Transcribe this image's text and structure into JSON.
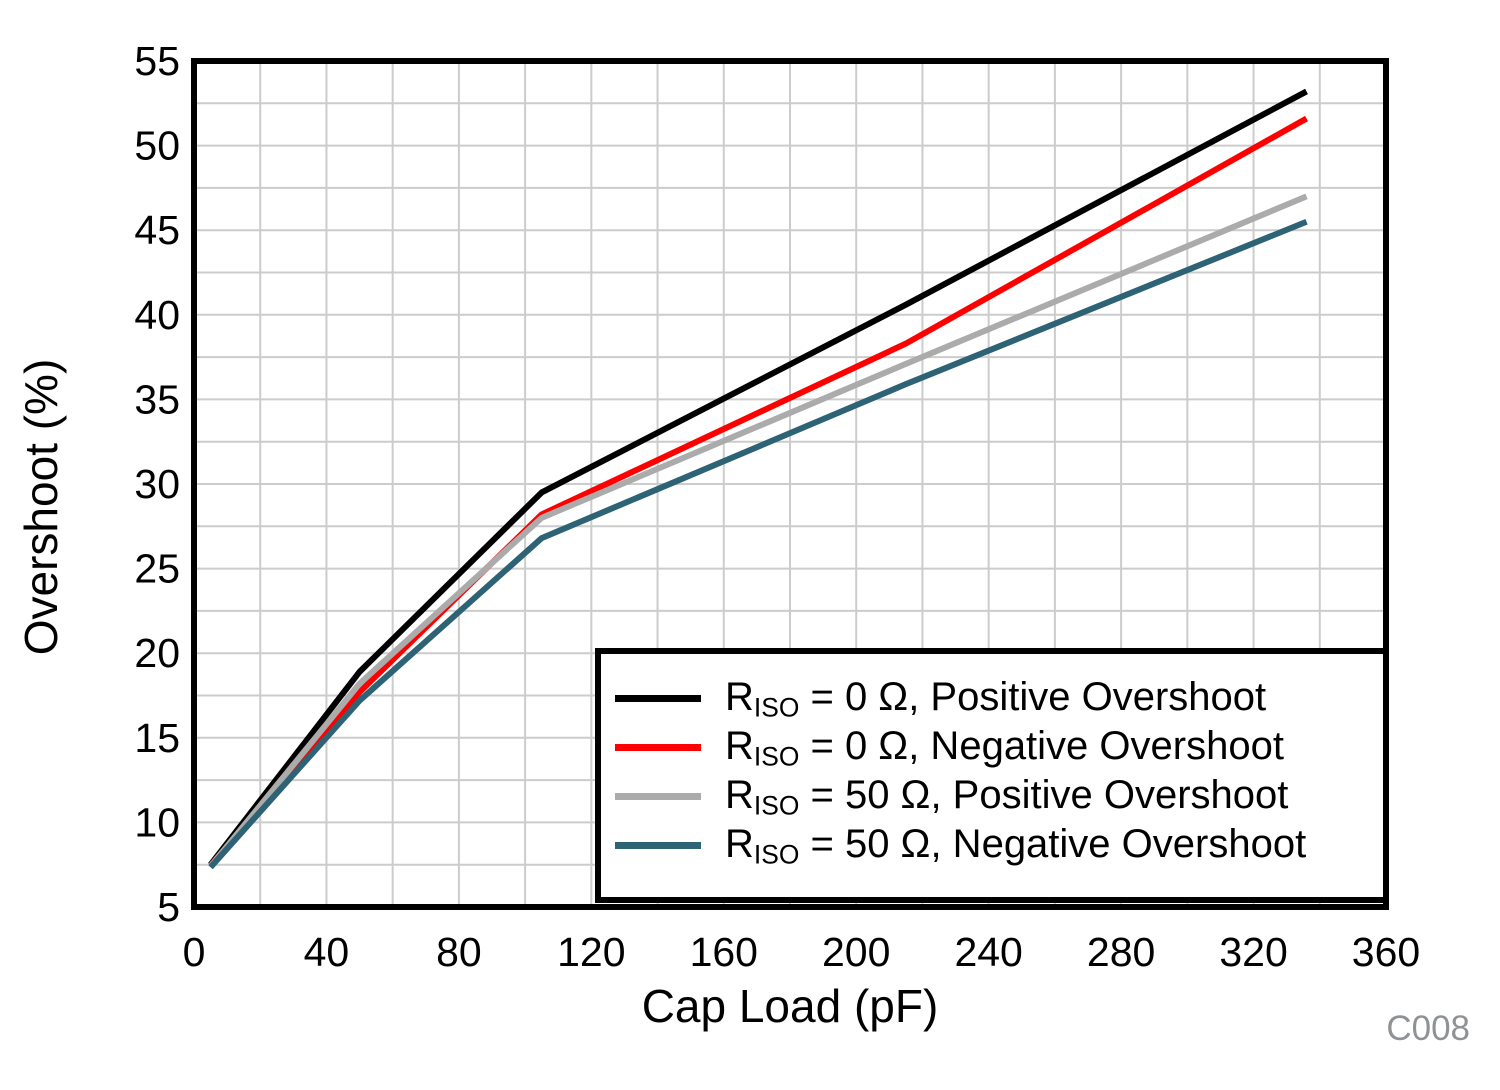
{
  "figure": {
    "code": "C008",
    "code_color": "#8F9295"
  },
  "chart_data": {
    "type": "line",
    "title": "",
    "xlabel": "Cap Load (pF)",
    "ylabel": "Overshoot (%)",
    "xlim": [
      0,
      360
    ],
    "ylim": [
      5,
      55
    ],
    "x_tick_step": 40,
    "x_grid_step": 20,
    "y_tick_step": 5,
    "y_grid_step": 2.5,
    "grid": true,
    "grid_color": "#CCCCCC",
    "axis_color": "#000000",
    "legend_position": "bottom-right",
    "x": [
      5,
      50,
      105,
      215,
      336
    ],
    "series": [
      {
        "name": "RISO = 0 Ω, Positive Overshoot",
        "label_prefix": "R",
        "label_sub": "ISO",
        "label_rest": " = 0 Ω, Positive Overshoot",
        "color": "#000000",
        "values": [
          7.5,
          18.9,
          29.5,
          40.6,
          53.2
        ]
      },
      {
        "name": "RISO = 0 Ω, Negative Overshoot",
        "label_prefix": "R",
        "label_sub": "ISO",
        "label_rest": " = 0 Ω, Negative Overshoot",
        "color": "#FF0000",
        "values": [
          7.45,
          17.7,
          28.2,
          38.3,
          51.6
        ]
      },
      {
        "name": "RISO = 50 Ω, Positive Overshoot",
        "label_prefix": "R",
        "label_sub": "ISO",
        "label_rest": " = 50 Ω, Positive Overshoot",
        "color": "#ABABAB",
        "values": [
          7.4,
          18.2,
          28.0,
          37.1,
          47.0
        ]
      },
      {
        "name": "RISO = 50 Ω, Negative Overshoot",
        "label_prefix": "R",
        "label_sub": "ISO",
        "label_rest": " = 50 Ω, Negative Overshoot",
        "color": "#2D6374",
        "values": [
          7.35,
          17.2,
          26.8,
          35.9,
          45.5
        ]
      }
    ]
  }
}
